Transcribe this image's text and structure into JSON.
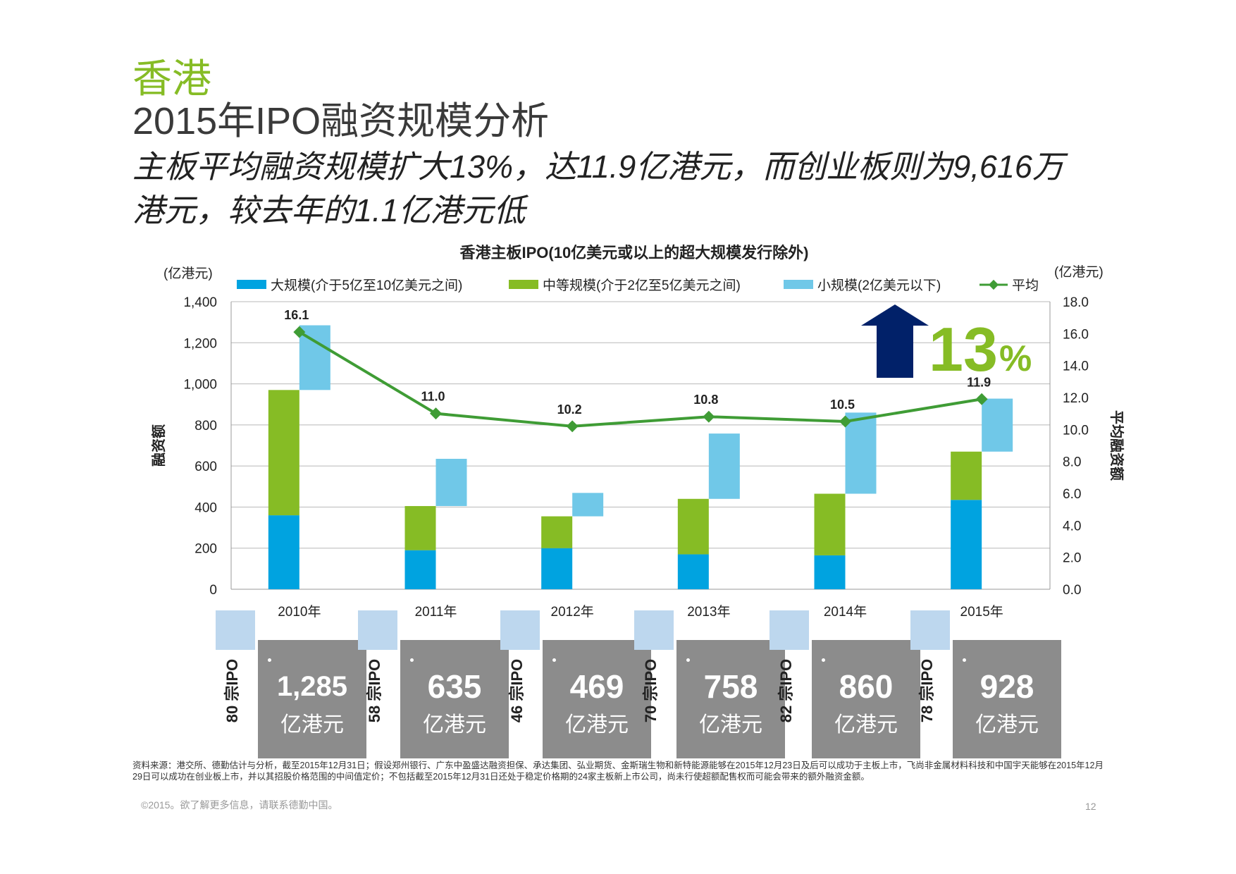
{
  "header": {
    "region": "香港",
    "title": "2015年IPO融资规模分析",
    "subtitle": "主板平均融资规模扩大13%，达11.9亿港元，而创业板则为9,616万港元，较去年的1.1亿港元低"
  },
  "chart_data": {
    "type": "bar",
    "stacked": true,
    "title": "香港主板IPO(10亿美元或以上的超大规模发行除外)",
    "categories": [
      "2010年",
      "2011年",
      "2012年",
      "2013年",
      "2014年",
      "2015年"
    ],
    "series": [
      {
        "name": "大规模(介于5亿至10亿美元之间)",
        "color": "#00a3e0",
        "values": [
          360,
          190,
          200,
          170,
          165,
          435
        ]
      },
      {
        "name": "中等规模(介于2亿至5亿美元之间)",
        "color": "#86bc25",
        "values": [
          610,
          215,
          155,
          270,
          300,
          235
        ]
      },
      {
        "name": "小规模(2亿美元以下)",
        "color": "#70c8e8",
        "values": [
          315,
          230,
          114,
          318,
          395,
          258
        ]
      }
    ],
    "line_series": {
      "name": "平均",
      "color": "#3f9c35",
      "axis": "right",
      "values": [
        16.1,
        11.0,
        10.2,
        10.8,
        10.5,
        11.9
      ]
    },
    "line_labels": [
      "16.1",
      "11.0",
      "10.2",
      "10.8",
      "10.5",
      "11.9"
    ],
    "ylim": [
      0,
      1400
    ],
    "y2lim": [
      0,
      18
    ],
    "yticks": [
      "0",
      "200",
      "400",
      "600",
      "800",
      "1,000",
      "1,200",
      "1,400"
    ],
    "y2ticks": [
      "0.0",
      "2.0",
      "4.0",
      "6.0",
      "8.0",
      "10.0",
      "12.0",
      "14.0",
      "16.0",
      "18.0"
    ],
    "ylabel": "融资额",
    "y2label": "平均融资额",
    "yunit_left": "(亿港元)",
    "yunit_right": "(亿港元)",
    "legend_labels": [
      "大规模(介于5亿至10亿美元之间)",
      "中等规模(介于2亿至5亿美元之间)",
      "小规模(2亿美元以下)",
      "平均"
    ],
    "callout": {
      "value": "13",
      "unit": "%",
      "color": "#86bc25",
      "arrow_color": "#012169"
    }
  },
  "summary_boxes": [
    {
      "ipo_count": "80 宗IPO",
      "amount": "1,285",
      "unit": "亿港元"
    },
    {
      "ipo_count": "58 宗IPO",
      "amount": "635",
      "unit": "亿港元"
    },
    {
      "ipo_count": "46 宗IPO",
      "amount": "469",
      "unit": "亿港元"
    },
    {
      "ipo_count": "70 宗IPO",
      "amount": "758",
      "unit": "亿港元"
    },
    {
      "ipo_count": "82 宗IPO",
      "amount": "860",
      "unit": "亿港元"
    },
    {
      "ipo_count": "78 宗IPO",
      "amount": "928",
      "unit": "亿港元"
    }
  ],
  "footer": {
    "source": "资料来源：港交所、德勤估计与分析，截至2015年12月31日；假设郑州银行、广东中盈盛达融资担保、承达集团、弘业期货、金斯瑞生物和新特能源能够在2015年12月23日及后可以成功于主板上市，飞尚非金属材料科技和中国宇天能够在2015年12月29日可以成功在创业板上市，并以其招股价格范围的中间值定价；不包括截至2015年12月31日还处于稳定价格期的24家主板新上市公司，尚未行使超额配售权而可能会带来的额外融资金额。",
    "copyright": "©2015。欲了解更多信息，请联系德勤中国。",
    "page_number": "12"
  }
}
